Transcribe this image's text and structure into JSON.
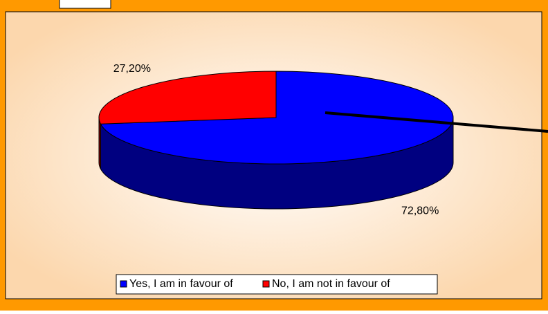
{
  "chart_data": {
    "type": "pie",
    "categories": [
      "Yes, I am in favour of",
      "No, I am not in favour of"
    ],
    "values": [
      72.8,
      27.2
    ],
    "value_labels": [
      "72,80%",
      "27,20%"
    ],
    "colors": [
      "#0000ff",
      "#ff0000"
    ],
    "side_colors": [
      "#000080",
      "#800000"
    ],
    "legend": "bottom"
  }
}
